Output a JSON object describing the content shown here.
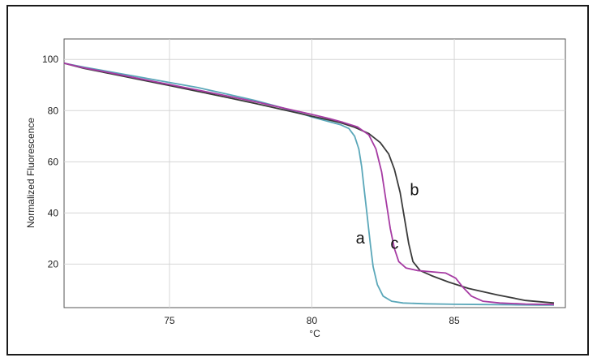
{
  "chart_data": {
    "type": "line",
    "xlabel": "°C",
    "ylabel": "Normalized Fluorescence",
    "xlim": [
      71.3,
      88.9
    ],
    "ylim": [
      3,
      108
    ],
    "x_ticks": [
      75,
      80,
      85
    ],
    "y_ticks": [
      20,
      40,
      60,
      80,
      100
    ],
    "grid": true,
    "series": [
      {
        "label": "a",
        "color": "#5aa7b9",
        "label_at": [
          81.7,
          28
        ],
        "points": [
          [
            71.3,
            98.5
          ],
          [
            72,
            97
          ],
          [
            73,
            95
          ],
          [
            74,
            93
          ],
          [
            75,
            91
          ],
          [
            76,
            89
          ],
          [
            77,
            86.5
          ],
          [
            78,
            84
          ],
          [
            79,
            81
          ],
          [
            80,
            77.5
          ],
          [
            80.5,
            76
          ],
          [
            81,
            74.5
          ],
          [
            81.3,
            73
          ],
          [
            81.5,
            70
          ],
          [
            81.65,
            65
          ],
          [
            81.75,
            58
          ],
          [
            81.85,
            48
          ],
          [
            81.95,
            38
          ],
          [
            82.05,
            28
          ],
          [
            82.15,
            19
          ],
          [
            82.3,
            12
          ],
          [
            82.5,
            7.5
          ],
          [
            82.8,
            5.5
          ],
          [
            83.2,
            4.8
          ],
          [
            84,
            4.5
          ],
          [
            85,
            4.3
          ],
          [
            86,
            4.2
          ],
          [
            87,
            4.1
          ],
          [
            88,
            4
          ],
          [
            88.5,
            4
          ]
        ]
      },
      {
        "label": "b",
        "color": "#3a3a3a",
        "label_at": [
          83.6,
          47
        ],
        "points": [
          [
            71.3,
            98.5
          ],
          [
            72,
            96.5
          ],
          [
            73,
            94.3
          ],
          [
            74,
            92
          ],
          [
            75,
            89.8
          ],
          [
            76,
            87.5
          ],
          [
            77,
            85.2
          ],
          [
            78,
            82.8
          ],
          [
            79,
            80.3
          ],
          [
            80,
            77.8
          ],
          [
            80.5,
            76.6
          ],
          [
            81,
            75.3
          ],
          [
            81.5,
            73.5
          ],
          [
            82,
            71
          ],
          [
            82.4,
            67.5
          ],
          [
            82.7,
            63
          ],
          [
            82.9,
            57
          ],
          [
            83.1,
            48
          ],
          [
            83.25,
            38
          ],
          [
            83.4,
            28
          ],
          [
            83.55,
            21
          ],
          [
            83.8,
            17.5
          ],
          [
            84.2,
            15.5
          ],
          [
            84.8,
            13
          ],
          [
            85.5,
            10.5
          ],
          [
            86.5,
            8
          ],
          [
            87.5,
            5.8
          ],
          [
            88.5,
            4.8
          ]
        ]
      },
      {
        "label": "c",
        "color": "#a63ba3",
        "label_at": [
          82.9,
          26
        ],
        "points": [
          [
            71.3,
            98.5
          ],
          [
            72,
            96.7
          ],
          [
            73,
            94.6
          ],
          [
            74,
            92.4
          ],
          [
            75,
            90.2
          ],
          [
            76,
            88
          ],
          [
            77,
            85.8
          ],
          [
            78,
            83.5
          ],
          [
            79,
            81
          ],
          [
            80,
            78.5
          ],
          [
            80.6,
            76.9
          ],
          [
            81.1,
            75.4
          ],
          [
            81.6,
            73.6
          ],
          [
            82,
            70.5
          ],
          [
            82.25,
            65
          ],
          [
            82.45,
            56
          ],
          [
            82.6,
            45
          ],
          [
            82.75,
            34
          ],
          [
            82.9,
            26
          ],
          [
            83.05,
            21
          ],
          [
            83.3,
            18.5
          ],
          [
            83.7,
            17.5
          ],
          [
            84.2,
            17
          ],
          [
            84.7,
            16.5
          ],
          [
            85.05,
            14.5
          ],
          [
            85.3,
            11
          ],
          [
            85.6,
            7.5
          ],
          [
            86,
            5.5
          ],
          [
            86.6,
            4.8
          ],
          [
            87.5,
            4.4
          ],
          [
            88.5,
            4.2
          ]
        ]
      }
    ]
  }
}
